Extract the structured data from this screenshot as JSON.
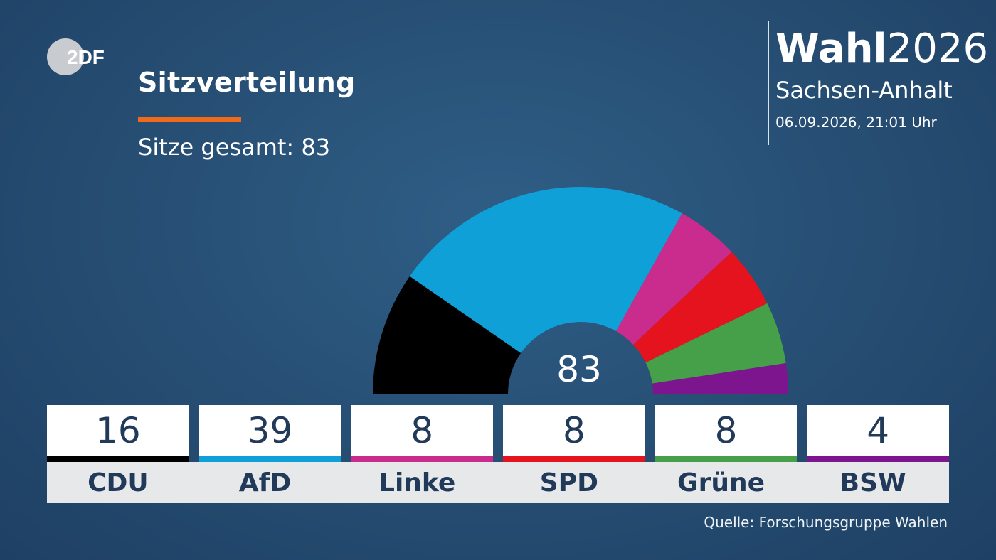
{
  "header": {
    "logo_text": "2DF",
    "title": "Sitzverteilung",
    "subtitle": "Sitze gesamt: 83",
    "accent_color": "#f06a1c"
  },
  "brand": {
    "title_bold": "Wahl",
    "title_light": "2026",
    "region": "Sachsen-Anhalt",
    "datetime": "06.09.2026, 21:01 Uhr"
  },
  "chart_data": {
    "type": "pie",
    "subtype": "parliament-semicircle",
    "title": "Sitzverteilung",
    "total": 83,
    "center_label": "83",
    "categories": [
      "CDU",
      "AfD",
      "Linke",
      "SPD",
      "Grüne",
      "BSW"
    ],
    "values": [
      16,
      39,
      8,
      8,
      8,
      4
    ],
    "colors": [
      "#000000",
      "#0fa0d8",
      "#c92c8c",
      "#e5131d",
      "#46a049",
      "#7d168e"
    ]
  },
  "source": "Quelle: Forschungsgruppe Wahlen"
}
